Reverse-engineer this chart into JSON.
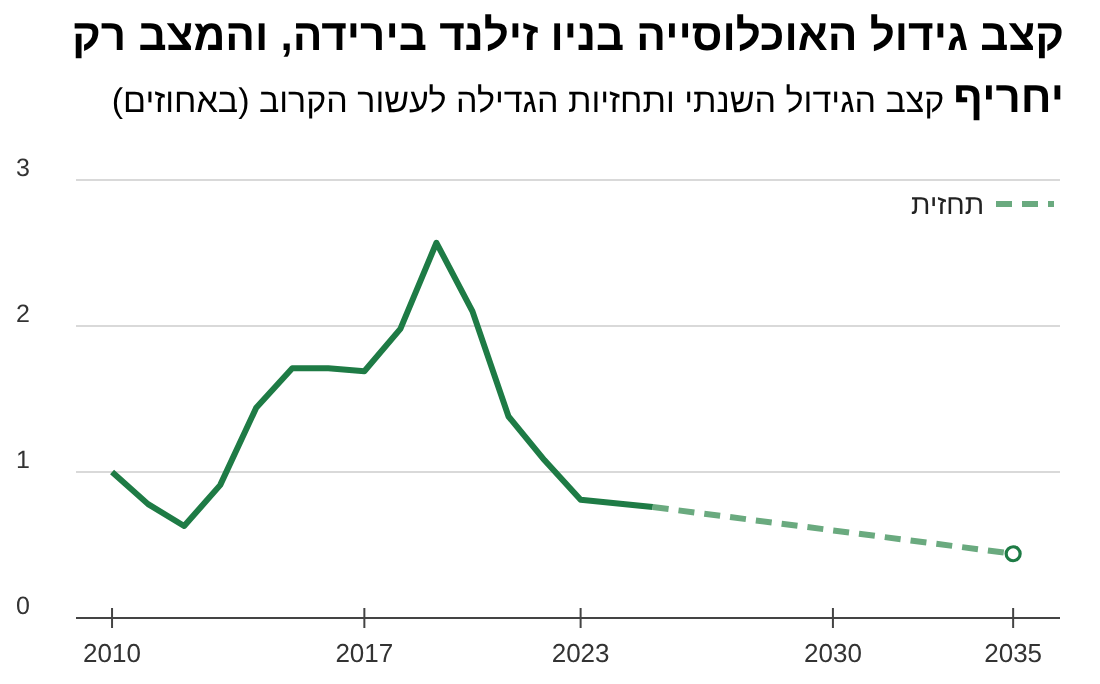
{
  "chart_data": {
    "type": "line",
    "title": "קצב גידול האוכלוסייה בניו זילנד בירידה, והמצב רק יחריף",
    "subtitle": "קצב הגידול השנתי ותחזיות הגדילה לעשור הקרוב (באחוזים)",
    "series": [
      {
        "color": "#1e7b45",
        "x": [
          2010,
          2011,
          2012,
          2013,
          2014,
          2015,
          2016,
          2017,
          2018,
          2019,
          2020,
          2021,
          2022,
          2023,
          2025
        ],
        "values": [
          1.0,
          0.78,
          0.63,
          0.91,
          1.44,
          1.71,
          1.71,
          1.69,
          1.98,
          2.57,
          2.1,
          1.38,
          1.08,
          0.81,
          0.76
        ],
        "line_style": "solid"
      },
      {
        "name": "תחזית",
        "color": "#6aaa7f",
        "x": [
          2025,
          2035
        ],
        "values": [
          0.76,
          0.44
        ],
        "line_style": "dashed",
        "marker": "circle"
      }
    ],
    "xlim": [
      2009,
      2036.3
    ],
    "ylim": [
      0,
      3
    ],
    "xticks": [
      2010,
      2017,
      2023,
      2030,
      2035
    ],
    "yticks": [
      0,
      1,
      2,
      3
    ],
    "grid": "y",
    "legend": "top right"
  }
}
